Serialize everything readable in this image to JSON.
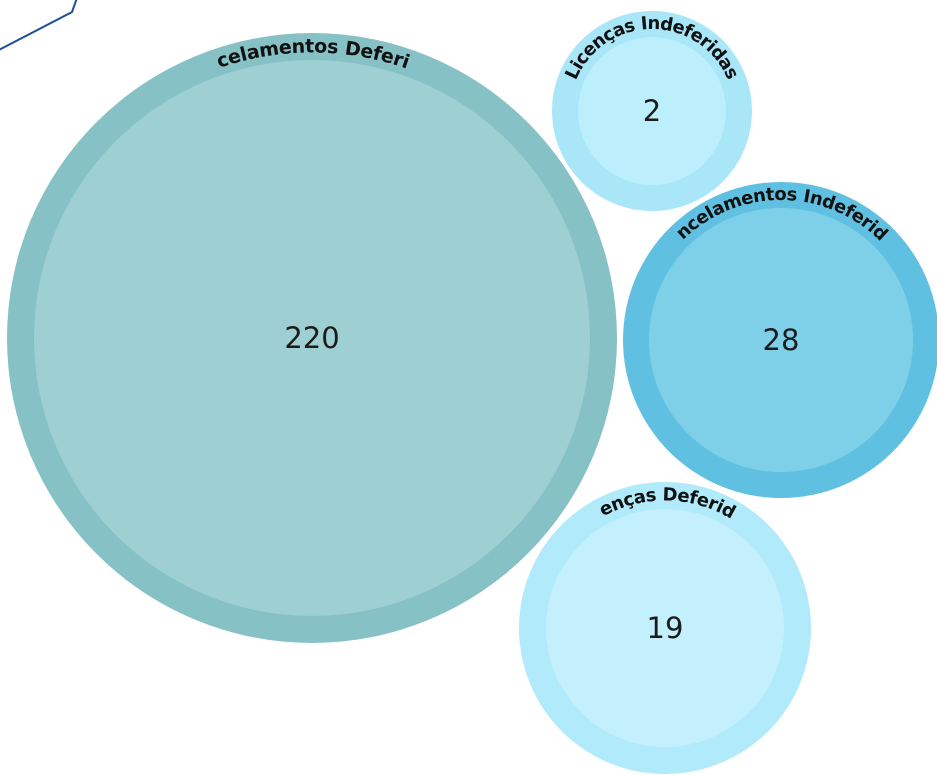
{
  "chart_data": {
    "type": "bubble",
    "title": "",
    "series": [
      {
        "name": "Cancelamentos Deferidos",
        "value": 220,
        "color": "#9ECFD3",
        "ring_color": "#86C1C6"
      },
      {
        "name": "Licenças Indeferidas",
        "value": 2,
        "color": "#BDEEFB",
        "ring_color": "#A8E6F8"
      },
      {
        "name": "Cancelamentos Indeferidos",
        "value": 28,
        "color": "#7ED0E8",
        "ring_color": "#60C0E1"
      },
      {
        "name": "Licenças Deferidas",
        "value": 19,
        "color": "#C4F0FD",
        "ring_color": "#B0EAFB"
      }
    ],
    "legend": "none",
    "grid": false
  },
  "decor": {
    "frame_line_color": "#1F4E9A"
  }
}
